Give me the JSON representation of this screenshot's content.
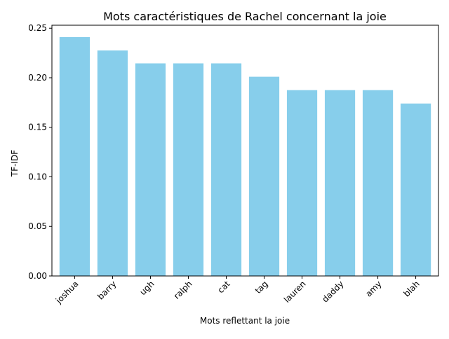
{
  "chart_data": {
    "type": "bar",
    "title": "Mots caractéristiques de Rachel concernant la joie",
    "xlabel": "Mots reflettant la joie",
    "ylabel": "TF-IDF",
    "categories": [
      "joshua",
      "barry",
      "ugh",
      "ralph",
      "cat",
      "tag",
      "lauren",
      "daddy",
      "amy",
      "blah"
    ],
    "values": [
      0.241,
      0.2275,
      0.2145,
      0.2145,
      0.2145,
      0.201,
      0.1875,
      0.1875,
      0.1875,
      0.174
    ],
    "ylim": [
      0,
      0.253
    ],
    "yticks": [
      0.0,
      0.05,
      0.1,
      0.15,
      0.2,
      0.25
    ],
    "ytick_labels": [
      "0.00",
      "0.05",
      "0.10",
      "0.15",
      "0.20",
      "0.25"
    ],
    "bar_color": "#87CEEB",
    "grid": false
  }
}
